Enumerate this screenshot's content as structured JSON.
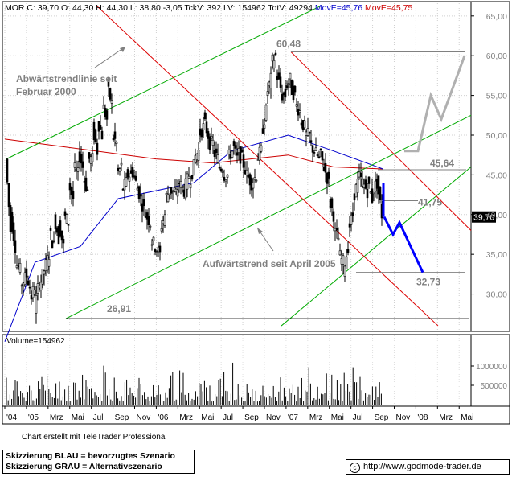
{
  "header": {
    "symbol": "MOR",
    "ohlc": "C: 39,70 O: 44,30 H: 44,30 L: 38,80 -3,05 TckV: 392 LV: 154962 TotV: 49294",
    "move1": "MovE=45,76",
    "move2": "MovE=45,75",
    "move1_color": "#0000cc",
    "move2_color": "#cc0000"
  },
  "chart_data": {
    "type": "candlestick",
    "title": "",
    "y_ticks": [
      "65,00",
      "60,00",
      "55,00",
      "50,00",
      "45,00",
      "40,00",
      "35,00",
      "30,00"
    ],
    "ylim": [
      25.5,
      66.5
    ],
    "x_ticks": [
      "'04",
      "'05",
      "Mrz",
      "Mai",
      "Jul",
      "Sep",
      "Nov",
      "'06",
      "Mrz",
      "Mai",
      "Jul",
      "Sep",
      "Nov",
      "'07",
      "Mrz",
      "Mai",
      "Jul",
      "Sep",
      "Nov",
      "'08",
      "Mrz",
      "Mai"
    ],
    "current_price_label": "39,70",
    "current_price": 39.7,
    "levels": [
      {
        "label": "60,48",
        "value": 60.48
      },
      {
        "label": "45,64",
        "value": 45.64
      },
      {
        "label": "41,75",
        "value": 41.75
      },
      {
        "label": "32,73",
        "value": 32.73
      },
      {
        "label": "26,91",
        "value": 26.91
      }
    ],
    "annotations": [
      {
        "id": "down",
        "text": "Abwärtstrendlinie seit",
        "text2": "Februar 2000"
      },
      {
        "id": "up",
        "text": "Aufwärtstrend seit April 2005"
      }
    ],
    "price_path": [
      [
        47,
        38
      ],
      [
        40,
        36
      ],
      [
        34,
        33
      ],
      [
        31,
        32
      ],
      [
        33,
        31
      ],
      [
        29,
        31
      ],
      [
        28,
        32
      ],
      [
        31,
        33
      ],
      [
        33,
        35
      ],
      [
        38,
        36
      ],
      [
        40,
        37
      ],
      [
        39,
        36
      ],
      [
        40,
        39
      ],
      [
        44,
        42
      ],
      [
        46,
        45
      ],
      [
        48,
        46
      ],
      [
        45,
        43
      ],
      [
        47,
        47
      ],
      [
        51,
        48
      ],
      [
        52,
        50
      ],
      [
        54,
        52
      ],
      [
        56,
        54
      ],
      [
        50,
        49
      ],
      [
        45,
        46
      ],
      [
        43,
        44
      ],
      [
        45,
        45
      ],
      [
        46,
        44
      ],
      [
        44,
        42
      ],
      [
        42,
        40
      ],
      [
        40,
        39
      ],
      [
        37,
        36
      ],
      [
        36,
        35
      ],
      [
        38,
        40
      ],
      [
        42,
        43
      ],
      [
        43,
        43
      ],
      [
        42,
        44
      ],
      [
        44,
        43
      ],
      [
        43,
        45
      ],
      [
        44,
        46
      ],
      [
        47,
        48
      ],
      [
        50,
        51
      ],
      [
        52,
        50
      ],
      [
        49,
        49
      ],
      [
        48,
        47
      ],
      [
        46,
        46
      ],
      [
        45,
        45
      ],
      [
        47,
        48
      ],
      [
        49,
        47
      ],
      [
        48,
        47
      ],
      [
        47,
        45
      ],
      [
        45,
        44
      ],
      [
        44,
        45
      ],
      [
        47,
        48
      ],
      [
        50,
        53
      ],
      [
        55,
        57
      ],
      [
        59,
        60
      ],
      [
        58,
        56
      ],
      [
        55,
        55
      ],
      [
        56,
        57
      ],
      [
        56,
        55
      ],
      [
        54,
        53
      ],
      [
        52,
        51
      ],
      [
        50,
        50
      ],
      [
        49,
        48
      ],
      [
        48,
        47
      ],
      [
        48,
        46
      ],
      [
        46,
        44
      ],
      [
        42,
        40
      ],
      [
        38,
        37
      ],
      [
        35,
        34
      ],
      [
        33,
        36
      ],
      [
        38,
        40
      ],
      [
        42,
        44
      ],
      [
        45,
        44
      ],
      [
        44,
        43
      ],
      [
        44,
        42
      ],
      [
        43,
        44
      ],
      [
        44,
        40
      ]
    ],
    "ma_red": [
      [
        0,
        49.5
      ],
      [
        0.4,
        47
      ],
      [
        0.55,
        46.5
      ],
      [
        0.75,
        47.5
      ],
      [
        0.87,
        46
      ],
      [
        1,
        45.75
      ]
    ],
    "ma_blue": [
      [
        0,
        24
      ],
      [
        0.08,
        34
      ],
      [
        0.2,
        36
      ],
      [
        0.3,
        42
      ],
      [
        0.5,
        44
      ],
      [
        0.6,
        48
      ],
      [
        0.75,
        50
      ],
      [
        0.87,
        48
      ],
      [
        1,
        45.76
      ]
    ],
    "forecast_blue": [
      39.7,
      37.5,
      39,
      32.73
    ],
    "forecast_grey": [
      48,
      55,
      52,
      60
    ]
  },
  "volume": {
    "label": "Volume=154962",
    "ticks": [
      "1000000",
      "500000"
    ]
  },
  "footer": {
    "credit": "Chart erstellt mit TeleTrader Professional",
    "legend_line1": "Skizzierung BLAU = bevorzugtes Szenario",
    "legend_line2": "Skizzierung GRAU = Alternativszenario",
    "copyright_symbol": "c",
    "url": "http://www.godmode-trader.de"
  }
}
